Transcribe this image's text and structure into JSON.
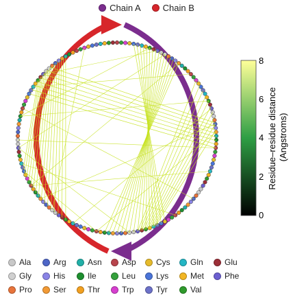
{
  "chains": [
    {
      "name": "Chain A",
      "color": "#7b2d8e"
    },
    {
      "name": "Chain B",
      "color": "#d7262b"
    }
  ],
  "colorbar": {
    "label": "Residue–residue distance (Angstroms)",
    "label_line1": "Residue–residue distance",
    "label_line2": "(Angstroms)",
    "min": 0,
    "max": 8,
    "ticks": [
      "8",
      "6",
      "4",
      "2",
      "0"
    ],
    "low_color": "#000000",
    "mid_color": "#2e9e44",
    "high_color": "#ffff99"
  },
  "contact_color": "#c7e21f",
  "amino_acids": [
    [
      {
        "label": "Ala",
        "color": "#c8c8c8"
      },
      {
        "label": "Arg",
        "color": "#4e66c7"
      },
      {
        "label": "Asn",
        "color": "#22b0a8"
      },
      {
        "label": "Asp",
        "color": "#b8444c"
      },
      {
        "label": "Cys",
        "color": "#e6bb2c"
      },
      {
        "label": "Gln",
        "color": "#24b6c4"
      },
      {
        "label": "Glu",
        "color": "#9c2f38"
      }
    ],
    [
      {
        "label": "Gly",
        "color": "#d0d0d0"
      },
      {
        "label": "His",
        "color": "#8a84e6"
      },
      {
        "label": "Ile",
        "color": "#1e8f2f"
      },
      {
        "label": "Leu",
        "color": "#35a13c"
      },
      {
        "label": "Lys",
        "color": "#4a74d8"
      },
      {
        "label": "Met",
        "color": "#f2b624"
      },
      {
        "label": "Phe",
        "color": "#6c5fd0"
      }
    ],
    [
      {
        "label": "Pro",
        "color": "#e8743b"
      },
      {
        "label": "Ser",
        "color": "#f29a35"
      },
      {
        "label": "Thr",
        "color": "#f2a020"
      },
      {
        "label": "Trp",
        "color": "#d63fcf"
      },
      {
        "label": "Tyr",
        "color": "#6d72c9"
      },
      {
        "label": "Val",
        "color": "#2f9a2c"
      }
    ]
  ]
}
